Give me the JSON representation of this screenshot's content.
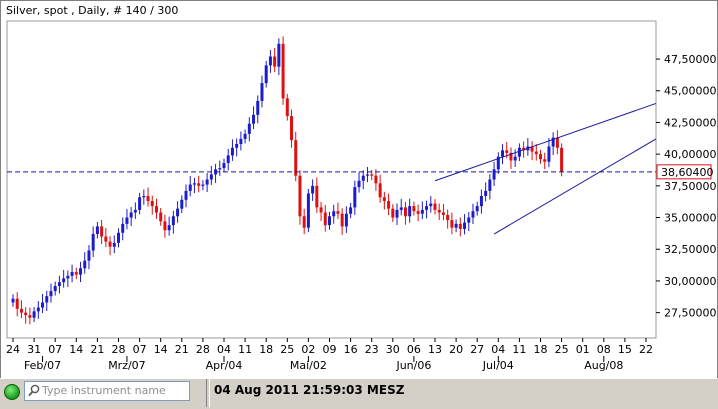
{
  "title": "Silver, spot , Daily, # 140 / 300",
  "current_price_label": "38,60400",
  "search": {
    "placeholder": "Type instrument name",
    "value": ""
  },
  "status": {
    "datetime": "04 Aug 2011 21:59:03 MESZ"
  },
  "colors": {
    "up": "#1c1ccc",
    "down": "#dd1111",
    "line": "#1a1aa0",
    "price_box": "#dd1111"
  },
  "chart_data": {
    "type": "candlestick",
    "title": "Silver, spot , Daily, # 140 / 300",
    "yticks": [
      "47,50000",
      "45,00000",
      "42,50000",
      "40,00000",
      "37,50000",
      "35,00000",
      "32,50000",
      "30,00000",
      "27,50000"
    ],
    "ytick_values": [
      47.5,
      45,
      42.5,
      40,
      37.5,
      35,
      32.5,
      30,
      27.5
    ],
    "ylim": [
      25.5,
      50.5
    ],
    "xticks": [
      "24",
      "31",
      "07",
      "14",
      "21",
      "28",
      "07",
      "14",
      "21",
      "28",
      "04",
      "11",
      "18",
      "25",
      "02",
      "09",
      "16",
      "23",
      "30",
      "06",
      "13",
      "20",
      "27",
      "04",
      "11",
      "18",
      "25",
      "01",
      "08",
      "15",
      "22"
    ],
    "xtick_index": [
      0,
      5,
      10,
      15,
      20,
      25,
      30,
      35,
      40,
      45,
      50,
      55,
      60,
      65,
      70,
      75,
      80,
      85,
      90,
      95,
      100,
      105,
      110,
      115,
      120,
      125,
      130,
      135,
      140,
      145,
      150
    ],
    "months": [
      "Feb/07",
      "Mrz/07",
      "Apr/04",
      "Mai/02",
      "Jun/06",
      "Jul/04",
      "Aug/08"
    ],
    "month_index": [
      7,
      27,
      50,
      70,
      95,
      115,
      140
    ],
    "current_price": 38.604,
    "trend_lines": [
      {
        "from": [
          100,
          37.9
        ],
        "to": [
          153,
          44.0
        ]
      },
      {
        "from": [
          114,
          33.7
        ],
        "to": [
          153,
          41.2
        ]
      }
    ],
    "closes": [
      28.6,
      27.8,
      27.5,
      27.3,
      27.1,
      27.6,
      27.9,
      28.3,
      28.8,
      29.2,
      29.6,
      29.9,
      30.2,
      30.4,
      30.7,
      30.5,
      31.0,
      31.6,
      32.4,
      33.7,
      34.3,
      33.5,
      33.1,
      32.7,
      33.0,
      33.8,
      34.5,
      35.0,
      35.4,
      35.6,
      36.6,
      36.7,
      36.3,
      35.9,
      35.4,
      34.7,
      34.0,
      34.4,
      35.1,
      35.7,
      36.4,
      37.1,
      37.6,
      37.7,
      37.5,
      37.6,
      38.0,
      38.4,
      38.8,
      38.9,
      39.3,
      39.9,
      40.5,
      40.8,
      41.2,
      41.6,
      42.4,
      43.1,
      44.2,
      45.6,
      47.0,
      47.7,
      46.9,
      48.7,
      44.4,
      43.0,
      41.1,
      38.3,
      35.1,
      34.2,
      36.9,
      37.5,
      35.8,
      35.4,
      34.4,
      35.1,
      35.5,
      35.3,
      34.3,
      35.3,
      35.8,
      37.4,
      37.9,
      38.3,
      38.4,
      38.3,
      37.7,
      36.6,
      36.3,
      35.7,
      35.0,
      35.6,
      35.8,
      35.1,
      35.9,
      35.5,
      35.3,
      35.6,
      35.9,
      36.1,
      35.6,
      35.4,
      35.2,
      34.8,
      34.2,
      34.5,
      34.1,
      34.6,
      35.0,
      35.5,
      35.9,
      36.7,
      37.1,
      38.0,
      38.8,
      39.8,
      40.3,
      40.1,
      39.5,
      39.8,
      40.5,
      40.3,
      40.6,
      40.2,
      40.0,
      39.6,
      39.4,
      40.6,
      41.3,
      40.5,
      38.6
    ]
  }
}
